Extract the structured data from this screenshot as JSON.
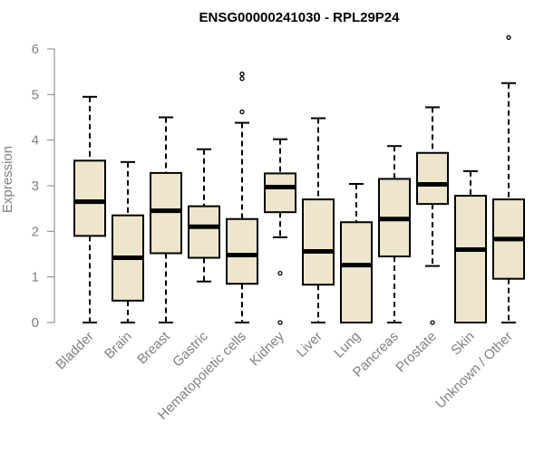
{
  "chart_data": {
    "type": "boxplot",
    "title": "ENSG00000241030 - RPL29P24",
    "xlabel": "",
    "ylabel": "Expression",
    "ylim": [
      0,
      6
    ],
    "yticks": [
      0,
      1,
      2,
      3,
      4,
      5,
      6
    ],
    "box_color": "#ede6cc",
    "categories": [
      "Bladder",
      "Brain",
      "Breast",
      "Gastric",
      "Hematopoietic cells",
      "Kidney",
      "Liver",
      "Lung",
      "Pancreas",
      "Prostate",
      "Skin",
      "Unknown / Other"
    ],
    "boxes": [
      {
        "min": 0,
        "q1": 1.9,
        "median": 2.65,
        "q3": 3.55,
        "max": 4.95,
        "outliers": []
      },
      {
        "min": 0,
        "q1": 0.48,
        "median": 1.42,
        "q3": 2.35,
        "max": 3.52,
        "outliers": []
      },
      {
        "min": 0,
        "q1": 1.52,
        "median": 2.45,
        "q3": 3.28,
        "max": 4.5,
        "outliers": []
      },
      {
        "min": 0.9,
        "q1": 1.42,
        "median": 2.1,
        "q3": 2.55,
        "max": 3.8,
        "outliers": []
      },
      {
        "min": 0,
        "q1": 0.85,
        "median": 1.48,
        "q3": 2.27,
        "max": 4.38,
        "outliers": [
          4.62,
          5.35,
          5.45
        ]
      },
      {
        "min": 1.87,
        "q1": 2.42,
        "median": 2.97,
        "q3": 3.27,
        "max": 4.02,
        "outliers": [
          1.08,
          0
        ]
      },
      {
        "min": 0,
        "q1": 0.83,
        "median": 1.56,
        "q3": 2.7,
        "max": 4.48,
        "outliers": []
      },
      {
        "min": 0,
        "q1": 0,
        "median": 1.26,
        "q3": 2.2,
        "max": 3.04,
        "outliers": []
      },
      {
        "min": 0,
        "q1": 1.45,
        "median": 2.27,
        "q3": 3.15,
        "max": 3.87,
        "outliers": []
      },
      {
        "min": 1.24,
        "q1": 2.6,
        "median": 3.03,
        "q3": 3.72,
        "max": 4.72,
        "outliers": [
          0
        ]
      },
      {
        "min": 0,
        "q1": 0,
        "median": 1.6,
        "q3": 2.78,
        "max": 3.32,
        "outliers": []
      },
      {
        "min": 0,
        "q1": 0.96,
        "median": 1.83,
        "q3": 2.7,
        "max": 5.25,
        "outliers": [
          6.25
        ]
      }
    ]
  }
}
